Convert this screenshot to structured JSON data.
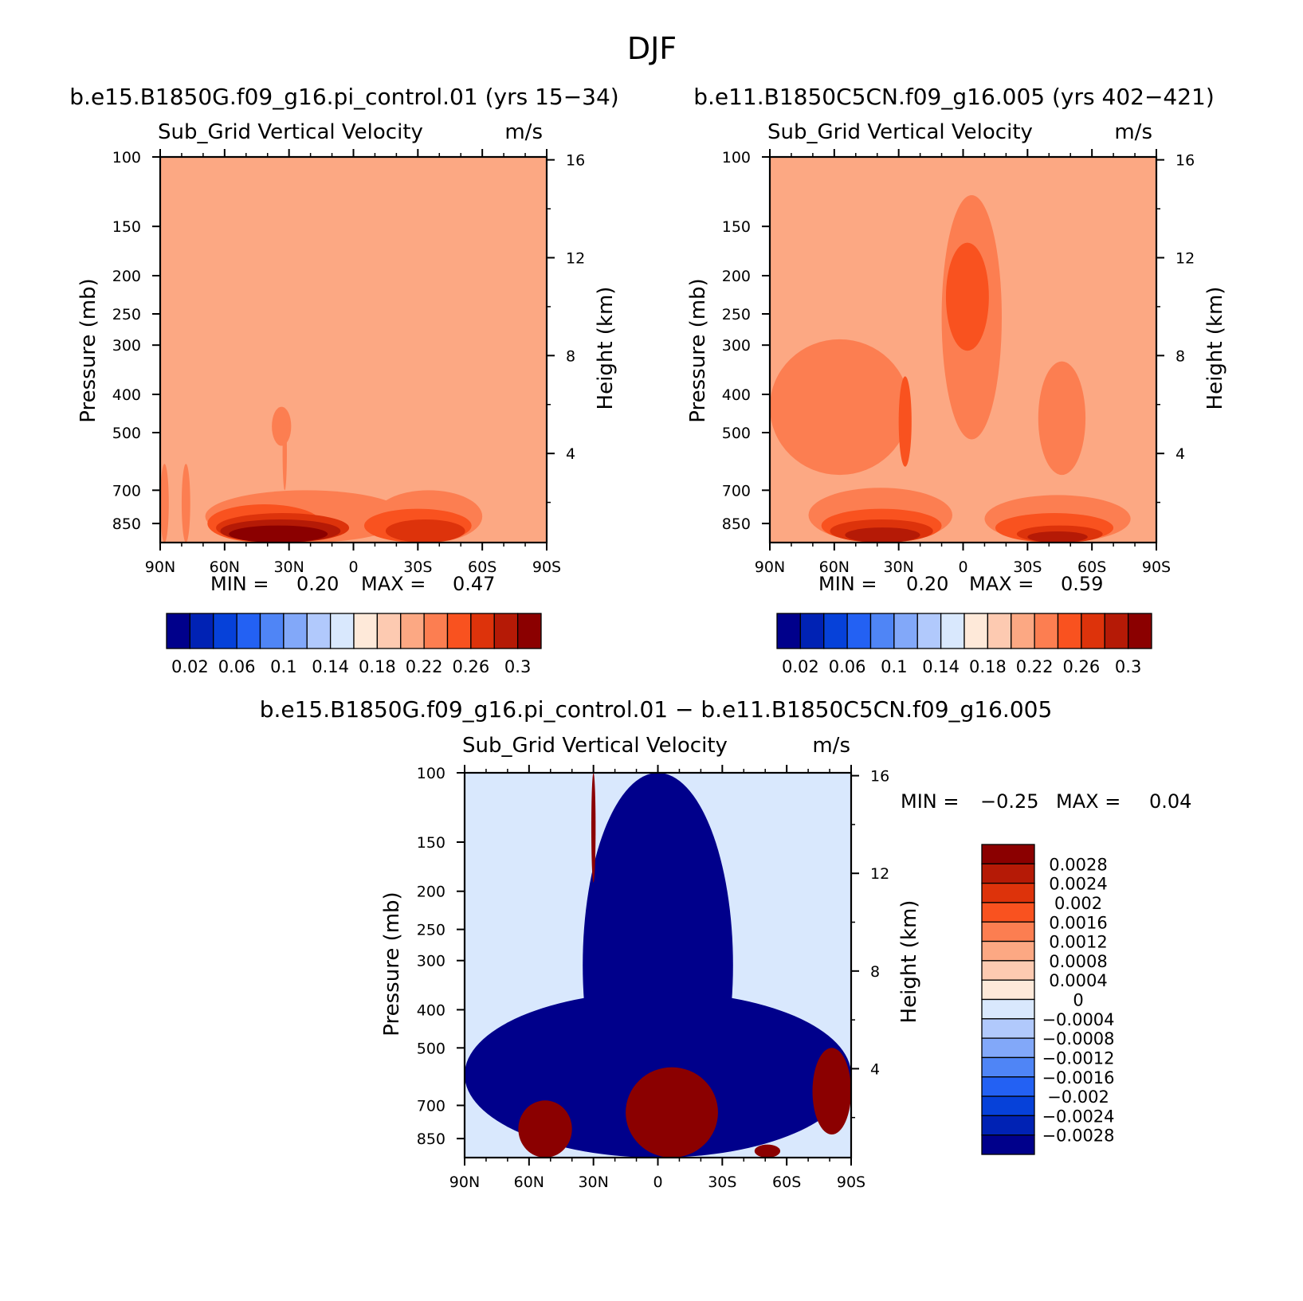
{
  "figure": {
    "title": "DJF"
  },
  "colors": {
    "levels_abs": [
      "#00008b",
      "#0022b4",
      "#0641d9",
      "#2361f3",
      "#4f85f6",
      "#82a8f9",
      "#b1c9fc",
      "#d9e8fd",
      "#fee9d9",
      "#fdcab1",
      "#fca883",
      "#fc7e51",
      "#f9521f",
      "#dd330b",
      "#b51a06",
      "#8b0000"
    ],
    "levels_diff": [
      "#00008b",
      "#0022b4",
      "#0641d9",
      "#2361f3",
      "#4f85f6",
      "#82a8f9",
      "#b1c9fc",
      "#d9e8fd",
      "#fee9d9",
      "#fdcab1",
      "#fca883",
      "#fc7e51",
      "#f9521f",
      "#dd330b",
      "#b51a06",
      "#8b0000"
    ]
  },
  "panels": [
    {
      "id": "p1",
      "case_title": "b.e15.B1850G.f09_g16.pi_control.01 (yrs 15−34)",
      "variable": "Sub_Grid Vertical Velocity",
      "units": "m/s",
      "ylabel": "Pressure (mb)",
      "y2label": "Height (km)",
      "stats": {
        "min_label": "MIN =",
        "min": "0.20",
        "max_label": "MAX =",
        "max": "0.47"
      },
      "colorbar_ticks": [
        "0.02",
        "0.06",
        "0.1",
        "0.14",
        "0.18",
        "0.22",
        "0.26",
        "0.3"
      ]
    },
    {
      "id": "p2",
      "case_title": "b.e11.B1850C5CN.f09_g16.005 (yrs 402−421)",
      "variable": "Sub_Grid Vertical Velocity",
      "units": "m/s",
      "ylabel": "Pressure (mb)",
      "y2label": "Height (km)",
      "stats": {
        "min_label": "MIN =",
        "min": "0.20",
        "max_label": "MAX =",
        "max": "0.59"
      },
      "colorbar_ticks": [
        "0.02",
        "0.06",
        "0.1",
        "0.14",
        "0.18",
        "0.22",
        "0.26",
        "0.3"
      ]
    },
    {
      "id": "p3",
      "case_title": "b.e15.B1850G.f09_g16.pi_control.01 − b.e11.B1850C5CN.f09_g16.005",
      "variable": "Sub_Grid Vertical Velocity",
      "units": "m/s",
      "ylabel": "Pressure (mb)",
      "y2label": "Height (km)",
      "stats": {
        "min_label": "MIN =",
        "min": "−0.25",
        "max_label": "MAX =",
        "max": "0.04"
      },
      "colorbar_ticks": [
        "0.0028",
        "0.0024",
        "0.002",
        "0.0016",
        "0.0012",
        "0.0008",
        "0.0004",
        "0",
        "−0.0004",
        "−0.0008",
        "−0.0012",
        "−0.0016",
        "−0.002",
        "−0.0024",
        "−0.0028"
      ]
    }
  ],
  "chart_data": [
    {
      "type": "heatmap",
      "title": "b.e15.B1850G.f09_g16.pi_control.01 (yrs 15−34)",
      "subtitle": "Sub_Grid Vertical Velocity",
      "units": "m/s",
      "xlabel": "",
      "ylabel": "Pressure (mb)",
      "y2label": "Height (km)",
      "x_ticks": [
        "90N",
        "60N",
        "30N",
        "0",
        "30S",
        "60S",
        "90S"
      ],
      "x_range": [
        90,
        -90
      ],
      "y_ticks": [
        100,
        150,
        200,
        250,
        300,
        400,
        500,
        700,
        850
      ],
      "y_range": [
        100,
        950
      ],
      "y_scale": "log",
      "y2_ticks": [
        16,
        12,
        8,
        4
      ],
      "min": 0.2,
      "max": 0.47,
      "background_value": 0.21,
      "regions": [
        {
          "lat": [
            76,
            80
          ],
          "plev": [
            600,
            950
          ],
          "value": 0.23
        },
        {
          "lat": [
            90,
            86
          ],
          "plev": [
            600,
            950
          ],
          "value": 0.23
        },
        {
          "lat": [
            38,
            29
          ],
          "plev": [
            430,
            540
          ],
          "value": 0.23
        },
        {
          "lat": [
            69,
            -25
          ],
          "plev": [
            700,
            950
          ],
          "value": 0.23
        },
        {
          "lat": [
            33,
            31
          ],
          "plev": [
            450,
            700
          ],
          "value": 0.23
        },
        {
          "lat": [
            -10,
            -60
          ],
          "plev": [
            700,
            950
          ],
          "value": 0.23
        },
        {
          "lat": [
            68,
            15
          ],
          "plev": [
            760,
            950
          ],
          "value": 0.25
        },
        {
          "lat": [
            -5,
            -55
          ],
          "plev": [
            780,
            950
          ],
          "value": 0.25
        },
        {
          "lat": [
            64,
            2
          ],
          "plev": [
            800,
            950
          ],
          "value": 0.27
        },
        {
          "lat": [
            -15,
            -52
          ],
          "plev": [
            830,
            950
          ],
          "value": 0.27
        },
        {
          "lat": [
            62,
            6
          ],
          "plev": [
            830,
            950
          ],
          "value": 0.29
        },
        {
          "lat": [
            58,
            12
          ],
          "plev": [
            860,
            950
          ],
          "value": 0.31
        }
      ],
      "colorbar_ticks": [
        0.02,
        0.06,
        0.1,
        0.14,
        0.18,
        0.22,
        0.26,
        0.3
      ]
    },
    {
      "type": "heatmap",
      "title": "b.e11.B1850C5CN.f09_g16.005 (yrs 402−421)",
      "subtitle": "Sub_Grid Vertical Velocity",
      "units": "m/s",
      "xlabel": "",
      "ylabel": "Pressure (mb)",
      "y2label": "Height (km)",
      "x_ticks": [
        "90N",
        "60N",
        "30N",
        "0",
        "30S",
        "60S",
        "90S"
      ],
      "x_range": [
        90,
        -90
      ],
      "y_ticks": [
        100,
        150,
        200,
        250,
        300,
        400,
        500,
        700,
        850
      ],
      "y_range": [
        100,
        950
      ],
      "y_scale": "log",
      "y2_ticks": [
        16,
        12,
        8,
        4
      ],
      "min": 0.2,
      "max": 0.59,
      "background_value": 0.21,
      "regions": [
        {
          "lat": [
            90,
            25
          ],
          "plev": [
            290,
            640
          ],
          "value": 0.23
        },
        {
          "lat": [
            10,
            -18
          ],
          "plev": [
            125,
            520
          ],
          "value": 0.23
        },
        {
          "lat": [
            -35,
            -57
          ],
          "plev": [
            330,
            640
          ],
          "value": 0.23
        },
        {
          "lat": [
            30,
            24
          ],
          "plev": [
            360,
            610
          ],
          "value": 0.25
        },
        {
          "lat": [
            8,
            -12
          ],
          "plev": [
            165,
            310
          ],
          "value": 0.25
        },
        {
          "lat": [
            72,
            5
          ],
          "plev": [
            690,
            950
          ],
          "value": 0.23
        },
        {
          "lat": [
            -10,
            -78
          ],
          "plev": [
            720,
            950
          ],
          "value": 0.23
        },
        {
          "lat": [
            66,
            10
          ],
          "plev": [
            780,
            950
          ],
          "value": 0.25
        },
        {
          "lat": [
            -15,
            -70
          ],
          "plev": [
            800,
            950
          ],
          "value": 0.25
        },
        {
          "lat": [
            62,
            14
          ],
          "plev": [
            830,
            950
          ],
          "value": 0.27
        },
        {
          "lat": [
            -25,
            -65
          ],
          "plev": [
            860,
            950
          ],
          "value": 0.27
        },
        {
          "lat": [
            55,
            20
          ],
          "plev": [
            870,
            950
          ],
          "value": 0.29
        },
        {
          "lat": [
            -30,
            -58
          ],
          "plev": [
            890,
            950
          ],
          "value": 0.29
        }
      ],
      "colorbar_ticks": [
        0.02,
        0.06,
        0.1,
        0.14,
        0.18,
        0.22,
        0.26,
        0.3
      ]
    },
    {
      "type": "heatmap",
      "title": "b.e15.B1850G.f09_g16.pi_control.01 − b.e11.B1850C5CN.f09_g16.005",
      "subtitle": "Sub_Grid Vertical Velocity",
      "units": "m/s",
      "xlabel": "",
      "ylabel": "Pressure (mb)",
      "y2label": "Height (km)",
      "x_ticks": [
        "90N",
        "60N",
        "30N",
        "0",
        "30S",
        "60S",
        "90S"
      ],
      "x_range": [
        90,
        -90
      ],
      "y_ticks": [
        100,
        150,
        200,
        250,
        300,
        400,
        500,
        700,
        850
      ],
      "y_range": [
        100,
        950
      ],
      "y_scale": "log",
      "y2_ticks": [
        16,
        12,
        8,
        4
      ],
      "min": -0.25,
      "max": 0.04,
      "background_value": -0.0002,
      "regions": [
        {
          "lat": [
            35,
            -35
          ],
          "plev": [
            100,
            950
          ],
          "value": -0.003
        },
        {
          "lat": [
            90,
            -90
          ],
          "plev": [
            360,
            950
          ],
          "value": -0.003
        },
        {
          "lat": [
            31,
            29
          ],
          "plev": [
            100,
            190
          ],
          "value": 0.003
        },
        {
          "lat": [
            15,
            -28
          ],
          "plev": [
            560,
            950
          ],
          "value": 0.003
        },
        {
          "lat": [
            65,
            40
          ],
          "plev": [
            680,
            950
          ],
          "value": 0.003
        },
        {
          "lat": [
            -45,
            -57
          ],
          "plev": [
            880,
            950
          ],
          "value": 0.003
        },
        {
          "lat": [
            -72,
            -90
          ],
          "plev": [
            500,
            830
          ],
          "value": 0.003
        }
      ],
      "colorbar_ticks": [
        0.0028,
        0.0024,
        0.002,
        0.0016,
        0.0012,
        0.0008,
        0.0004,
        0,
        -0.0004,
        -0.0008,
        -0.0012,
        -0.0016,
        -0.002,
        -0.0024,
        -0.0028
      ]
    }
  ]
}
